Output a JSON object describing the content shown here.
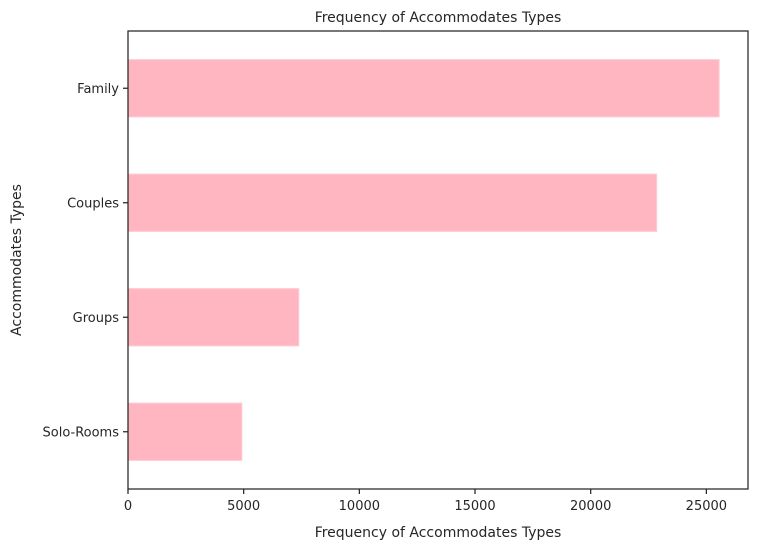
{
  "chart_data": {
    "type": "bar",
    "orientation": "horizontal",
    "title": "Frequency of Accommodates Types",
    "xlabel": "Frequency of Accommodates Types",
    "ylabel": "Accommodates Types",
    "categories": [
      "Family",
      "Couples",
      "Groups",
      "Solo-Rooms"
    ],
    "values": [
      25550,
      22850,
      7380,
      4920
    ],
    "xlim": [
      0,
      26800
    ],
    "xticks": [
      0,
      5000,
      10000,
      15000,
      20000,
      25000
    ],
    "grid": false,
    "bar_color": "#ffb6c1"
  }
}
